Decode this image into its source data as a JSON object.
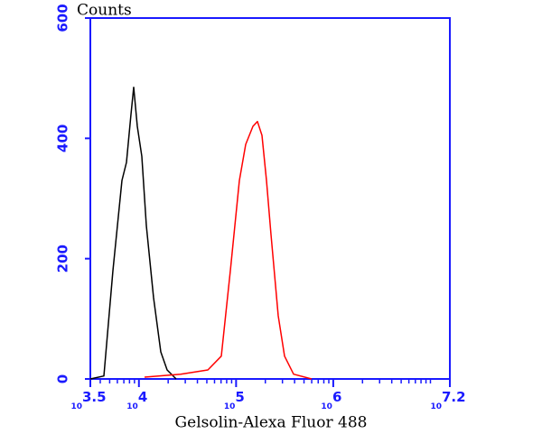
{
  "chart_data": {
    "type": "line",
    "y_label": "Counts",
    "x_label": "Gelsolin-Alexa Fluor 488",
    "log_x": true,
    "xlim": [
      3162.28,
      15848931.9
    ],
    "ylim": [
      0,
      600
    ],
    "xticks": [
      {
        "value": 3162.28,
        "label": "10",
        "exponent": "3.5"
      },
      {
        "value": 10000,
        "label": "10",
        "exponent": "4"
      },
      {
        "value": 100000,
        "label": "10",
        "exponent": "5"
      },
      {
        "value": 1000000,
        "label": "10",
        "exponent": "6"
      },
      {
        "value": 15848931.9,
        "label": "10",
        "exponent": "7.2"
      }
    ],
    "minor_xticks": [
      4000,
      5000,
      6000,
      7000,
      8000,
      9000,
      20000,
      30000,
      40000,
      50000,
      60000,
      70000,
      80000,
      90000,
      200000,
      300000,
      400000,
      500000,
      600000,
      700000,
      800000,
      900000,
      2000000,
      3000000,
      4000000,
      5000000,
      6000000,
      7000000,
      8000000,
      9000000,
      10000000
    ],
    "yticks": [
      0,
      200,
      400,
      600
    ],
    "axis_color": "#1a1aff",
    "series": [
      {
        "color": "#000000",
        "x": [
          3162,
          4355,
          5395,
          6683,
          7447,
          8279,
          8831,
          9616,
          10715,
          11912,
          14158,
          16788,
          19500,
          24154
        ],
        "values": [
          0,
          5,
          180,
          330,
          360,
          440,
          485,
          420,
          370,
          255,
          135,
          45,
          15,
          0
        ]
      },
      {
        "color": "#ff0000",
        "x": [
          11430,
          26915,
          51170,
          70469,
          87297,
          108143,
          125603,
          148936,
          165959,
          184502,
          205589,
          228560,
          271644,
          315500,
          390841,
          599791
        ],
        "values": [
          3,
          8,
          15,
          38,
          180,
          330,
          390,
          420,
          428,
          405,
          330,
          240,
          105,
          38,
          8,
          0
        ]
      }
    ]
  }
}
